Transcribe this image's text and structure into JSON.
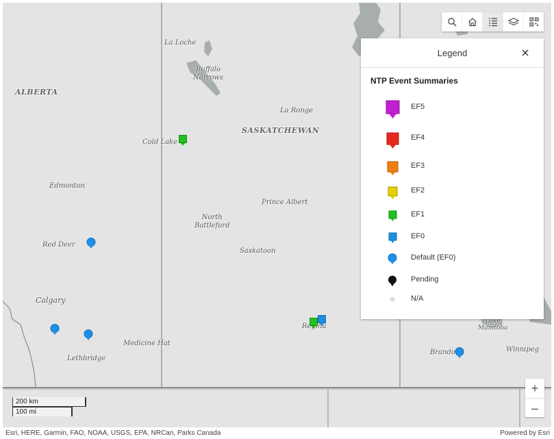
{
  "map": {
    "provinces": [
      {
        "id": "alberta",
        "label": "ALBERTA"
      },
      {
        "id": "saskatchewan",
        "label": "SASKATCHEWAN"
      }
    ],
    "places": [
      {
        "id": "la-loche",
        "label": "La Loche"
      },
      {
        "id": "buffalo-narrows",
        "label": "Buffalo\nNarrows"
      },
      {
        "id": "la-ronge",
        "label": "La Ronge"
      },
      {
        "id": "cold-lake",
        "label": "Cold Lake"
      },
      {
        "id": "edmonton",
        "label": "Edmonton"
      },
      {
        "id": "prince-albert",
        "label": "Prince Albert"
      },
      {
        "id": "north-battleford",
        "label": "North\nBattleford"
      },
      {
        "id": "saskatoon",
        "label": "Saskatoon"
      },
      {
        "id": "red-deer",
        "label": "Red Deer"
      },
      {
        "id": "calgary",
        "label": "Calgary"
      },
      {
        "id": "medicine-hat",
        "label": "Medicine Hat"
      },
      {
        "id": "lethbridge",
        "label": "Lethbridge"
      },
      {
        "id": "regina",
        "label": "Regina"
      },
      {
        "id": "brandon",
        "label": "Brandon"
      },
      {
        "id": "winnipeg",
        "label": "Winnipeg"
      },
      {
        "id": "lake-manitoba",
        "label": "Lake\nManitoba"
      }
    ],
    "markers": [
      {
        "id": "cold-lake-marker",
        "type": "EF1"
      },
      {
        "id": "red-deer-marker",
        "type": "Default (EF0)"
      },
      {
        "id": "calgary-marker",
        "type": "Default (EF0)"
      },
      {
        "id": "lethbridge-marker",
        "type": "Default (EF0)"
      },
      {
        "id": "regina-marker-ef1",
        "type": "EF1"
      },
      {
        "id": "regina-marker-ef0",
        "type": "EF0"
      },
      {
        "id": "brandon-marker",
        "type": "Default (EF0)"
      }
    ]
  },
  "toolbar": {
    "tools": [
      {
        "id": "search",
        "icon": "search-icon"
      },
      {
        "id": "home",
        "icon": "home-icon"
      },
      {
        "id": "legend",
        "icon": "legend-list-icon",
        "active": true
      },
      {
        "id": "layers",
        "icon": "layers-icon"
      },
      {
        "id": "qr",
        "icon": "qr-code-icon"
      }
    ]
  },
  "legend": {
    "title": "Legend",
    "close_icon": "close-icon",
    "layer_title": "NTP Event Summaries",
    "items": [
      {
        "label": "EF5",
        "color": "#c020d0",
        "shape": "square-pin"
      },
      {
        "label": "EF4",
        "color": "#e8281e",
        "shape": "square-pin"
      },
      {
        "label": "EF3",
        "color": "#f08010",
        "shape": "square-pin"
      },
      {
        "label": "EF2",
        "color": "#e6d000",
        "shape": "square-pin"
      },
      {
        "label": "EF1",
        "color": "#22c022",
        "shape": "square-pin"
      },
      {
        "label": "EF0",
        "color": "#1e8ee0",
        "shape": "square-pin"
      },
      {
        "label": "Default (EF0)",
        "color": "#1e90e8",
        "shape": "round-pin"
      },
      {
        "label": "Pending",
        "color": "#111111",
        "shape": "round-pin"
      },
      {
        "label": "N/A",
        "color": "#dddddd",
        "shape": "dot"
      }
    ]
  },
  "zoom": {
    "in_label": "+",
    "out_label": "–"
  },
  "scale": {
    "km_label": "200 km",
    "mi_label": "100 mi"
  },
  "attribution": {
    "sources": "Esri, HERE, Garmin, FAO, NOAA, USGS, EPA, NRCan, Parks Canada",
    "powered_by": "Powered by Esri"
  },
  "colors": {
    "map_bg": "#e4e4e4",
    "water": "#a8aeae",
    "border": "#888888"
  }
}
